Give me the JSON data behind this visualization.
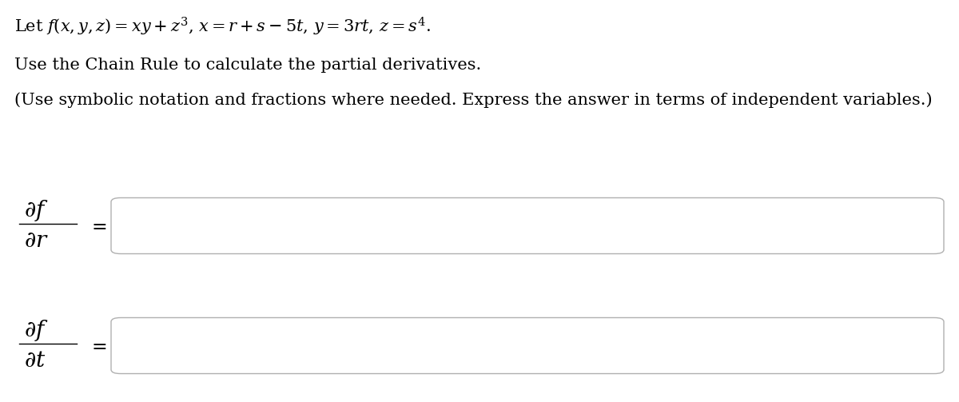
{
  "background_color": "#ffffff",
  "line1": "Let $f(x, y, z) = xy + z^3$, $x = r + s - 5t$, $y = 3rt$, $z = s^4$.",
  "line2": "Use the Chain Rule to calculate the partial derivatives.",
  "line3": "(Use symbolic notation and fractions where needed. Express the answer in terms of independent variables.)",
  "label1_num": "$\\partial f$",
  "label1_den": "$\\partial r$",
  "label2_num": "$\\partial f$",
  "label2_den": "$\\partial t$",
  "equals": "$=$",
  "box_color": "#ffffff",
  "box_edge_color": "#b0b0b0",
  "text_color": "#000000",
  "font_size_main": 15,
  "font_size_label": 17,
  "fig_width": 12.0,
  "fig_height": 5.03
}
